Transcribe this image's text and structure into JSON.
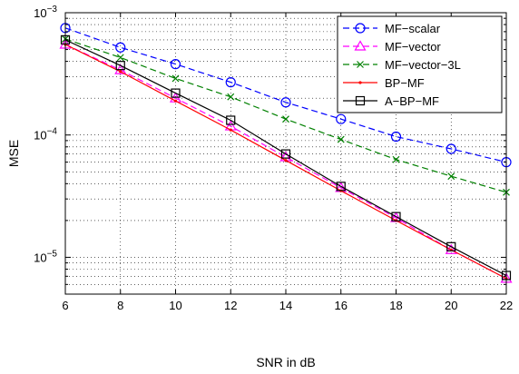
{
  "chart_data": {
    "type": "line",
    "title": "",
    "xlabel": "SNR in dB",
    "ylabel": "MSE",
    "x": [
      6,
      8,
      10,
      12,
      14,
      16,
      18,
      20,
      22
    ],
    "xlim": [
      6,
      22
    ],
    "xticks": [
      "6",
      "8",
      "10",
      "12",
      "14",
      "16",
      "18",
      "20",
      "22"
    ],
    "yscale": "log",
    "ylim": [
      5e-06,
      0.001
    ],
    "yticks": [
      {
        "value": 0.001,
        "base": "10",
        "exp": "−3"
      },
      {
        "value": 0.0001,
        "base": "10",
        "exp": "−4"
      },
      {
        "value": 1e-05,
        "base": "10",
        "exp": "−5"
      }
    ],
    "grid": true,
    "legend_position": "top-right",
    "series": [
      {
        "name": "MF−scalar",
        "color": "#0000ff",
        "dash": "dashed",
        "marker": "circle",
        "values": [
          0.00075,
          0.00052,
          0.00038,
          0.00027,
          0.000185,
          0.000135,
          9.7e-05,
          7.7e-05,
          6e-05
        ]
      },
      {
        "name": "MF−vector",
        "color": "#ff00ff",
        "dash": "dashed",
        "marker": "triangle",
        "values": [
          0.00055,
          0.00034,
          0.0002,
          0.000118,
          6.6e-05,
          3.7e-05,
          2.1e-05,
          1.15e-05,
          6.7e-06
        ]
      },
      {
        "name": "MF−vector−3L",
        "color": "#008000",
        "dash": "dashed",
        "marker": "x",
        "values": [
          0.00061,
          0.00043,
          0.00029,
          0.000205,
          0.000135,
          9.2e-05,
          6.3e-05,
          4.6e-05,
          3.4e-05
        ]
      },
      {
        "name": "BP−MF",
        "color": "#ff0000",
        "dash": "solid",
        "marker": "dot",
        "values": [
          0.00055,
          0.00033,
          0.00019,
          0.00011,
          6.2e-05,
          3.5e-05,
          2e-05,
          1.15e-05,
          6.7e-06
        ]
      },
      {
        "name": "A−BP−MF",
        "color": "#000000",
        "dash": "solid",
        "marker": "square",
        "values": [
          0.0006,
          0.00037,
          0.00022,
          0.000132,
          7e-05,
          3.8e-05,
          2.15e-05,
          1.22e-05,
          7.1e-06
        ]
      }
    ]
  }
}
